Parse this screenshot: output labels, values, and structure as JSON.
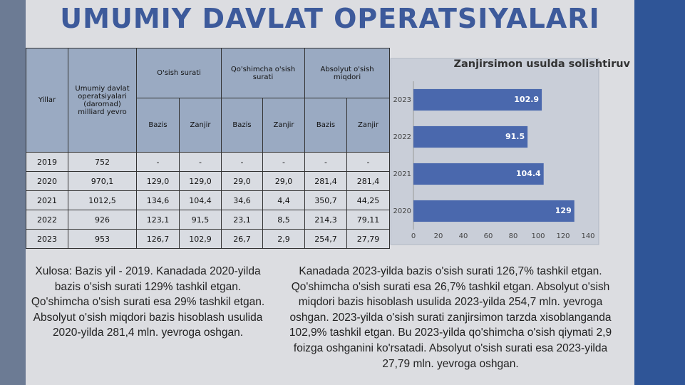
{
  "title": "UMUMIY DAVLAT OPERATSIYALARI",
  "table": {
    "head": [
      "Yillar",
      "Umumiy davlat operatsiyalari (daromad) milliard yevro"
    ],
    "groups": [
      "O'sish surati",
      "Qo'shimcha o'sish surati",
      "Absolyut o'sish miqdori"
    ],
    "sub": [
      "Bazis",
      "Zanjir",
      "Bazis",
      "Zanjir",
      "Bazis",
      "Zanjir"
    ],
    "rows": [
      [
        "2019",
        "752",
        "-",
        "-",
        "-",
        "-",
        "-",
        "-"
      ],
      [
        "2020",
        "970,1",
        "129,0",
        "129,0",
        "29,0",
        "29,0",
        "281,4",
        "281,4"
      ],
      [
        "2021",
        "1012,5",
        "134,6",
        "104,4",
        "34,6",
        "4,4",
        "350,7",
        "44,25"
      ],
      [
        "2022",
        "926",
        "123,1",
        "91,5",
        "23,1",
        "8,5",
        "214,3",
        "79,11"
      ],
      [
        "2023",
        "953",
        "126,7",
        "102,9",
        "26,7",
        "2,9",
        "254,7",
        "27,79"
      ]
    ]
  },
  "chart_data": {
    "type": "hbar",
    "title": "Zanjirsimon usulda solishtiruv",
    "categories": [
      "2020",
      "2021",
      "2022",
      "2023"
    ],
    "values": [
      129,
      104.4,
      91.5,
      102.9
    ],
    "color": "#4a68ad",
    "xlim": [
      0,
      140
    ],
    "xticks": [
      0,
      20,
      40,
      60,
      80,
      100,
      120,
      140
    ],
    "grid": false
  },
  "notes": [
    "Xulosa: Bazis yil - 2019. Kanadada 2020-yilda bazis o'sish surati 129% tashkil etgan. Qo'shimcha o'sish surati esa 29% tashkil etgan. Absolyut o'sish miqdori bazis hisoblash usulida 2020-yilda 281,4 mln. yevroga oshgan.",
    "Kanadada 2023-yilda bazis o'sish surati 126,7% tashkil etgan. Qo'shimcha o'sish surati esa 26,7% tashkil etgan. Absolyut o'sish miqdori bazis hisoblash usulida 2023-yilda 254,7 mln. yevroga oshgan. 2023-yilda o'sish surati zanjirsimon tarzda xisoblanganda 102,9% tashkil etgan. Bu 2023-yilda qo'shimcha o'sish qiymati 2,9 foizga oshganini ko'rsatadi. Absolyut o'sish surati esa 2023-yilda 27,79 mln. yevroga oshgan."
  ]
}
